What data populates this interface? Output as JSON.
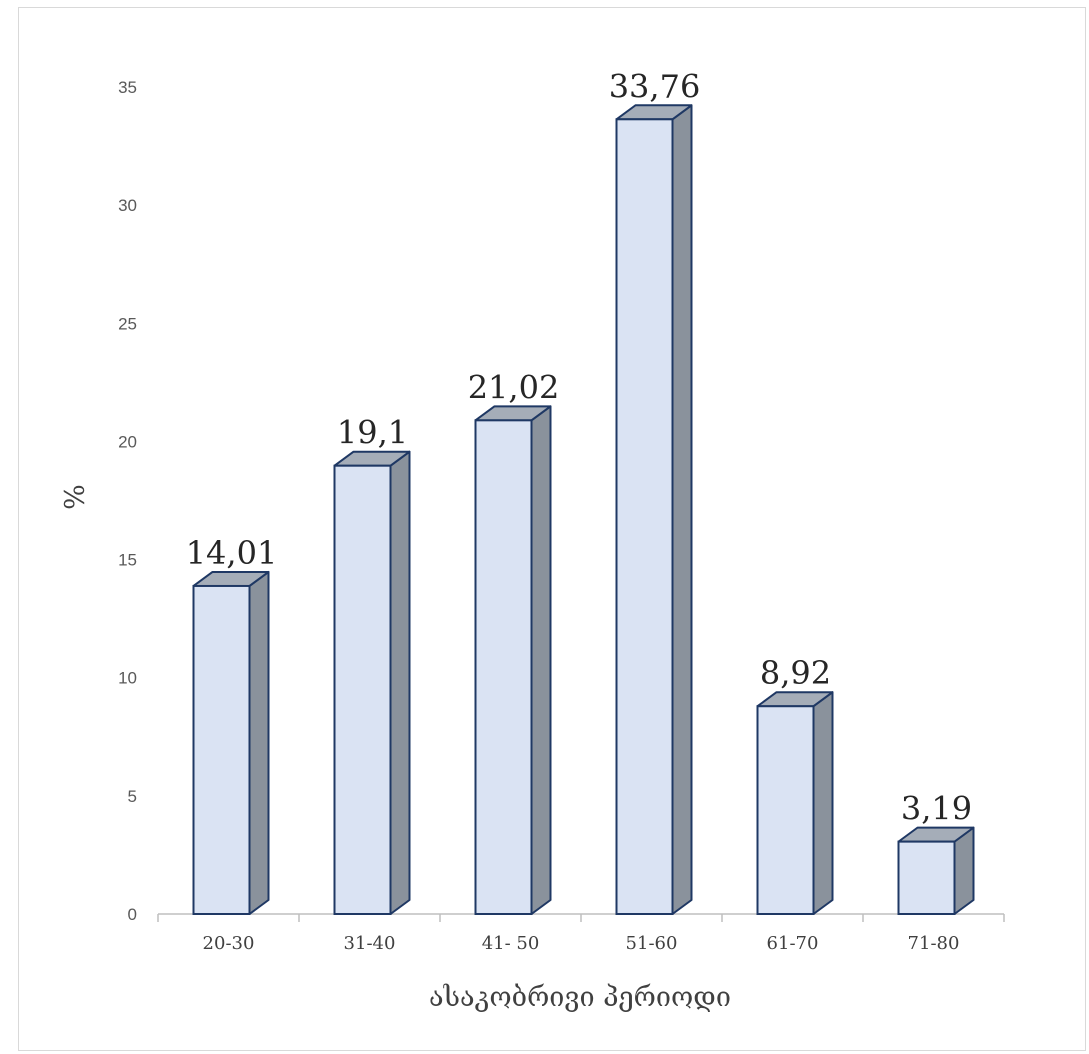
{
  "chart_data": {
    "type": "bar",
    "style": "3d-column",
    "categories": [
      "20-30",
      "31-40",
      "41- 50",
      "51-60",
      "61-70",
      "71-80"
    ],
    "values": [
      14.01,
      19.1,
      21.02,
      33.76,
      8.92,
      3.19
    ],
    "data_labels": [
      "14,01",
      "19,1",
      "21,02",
      "33,76",
      "8,92",
      "3,19"
    ],
    "title": "",
    "xlabel": "ასაკობრივი პერიოდი",
    "ylabel": "%",
    "ylim": [
      0,
      35
    ],
    "yticks": [
      0,
      5,
      10,
      15,
      20,
      25,
      30,
      35
    ],
    "grid": false,
    "legend": "none",
    "colors": {
      "bar_front": "#dae3f3",
      "bar_top": "#a5adb8",
      "bar_side": "#8a929c",
      "bar_outline": "#1f3864",
      "axis": "#bfbfbf"
    }
  }
}
